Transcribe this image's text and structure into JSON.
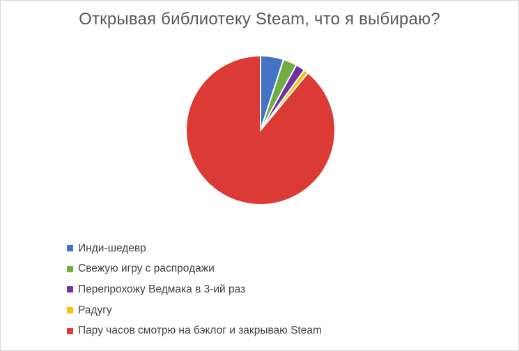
{
  "chart_data": {
    "type": "pie",
    "title": "Открывая библиотеку Steam, что я выбираю?",
    "legend_position": "bottom",
    "slices": [
      {
        "label": "Инди-шедевр",
        "value": 5,
        "color": "#4472c4"
      },
      {
        "label": "Свежую игру с распродажи",
        "value": 3,
        "color": "#70ad47"
      },
      {
        "label": "Перепрохожу Ведмака в 3-ий раз",
        "value": 2,
        "color": "#7030a0"
      },
      {
        "label": "Радугу",
        "value": 1,
        "color": "#ffc000"
      },
      {
        "label": "Пару часов смотрю на бэклог и закрываю Steam",
        "value": 89,
        "color": "#db3b34"
      }
    ]
  }
}
